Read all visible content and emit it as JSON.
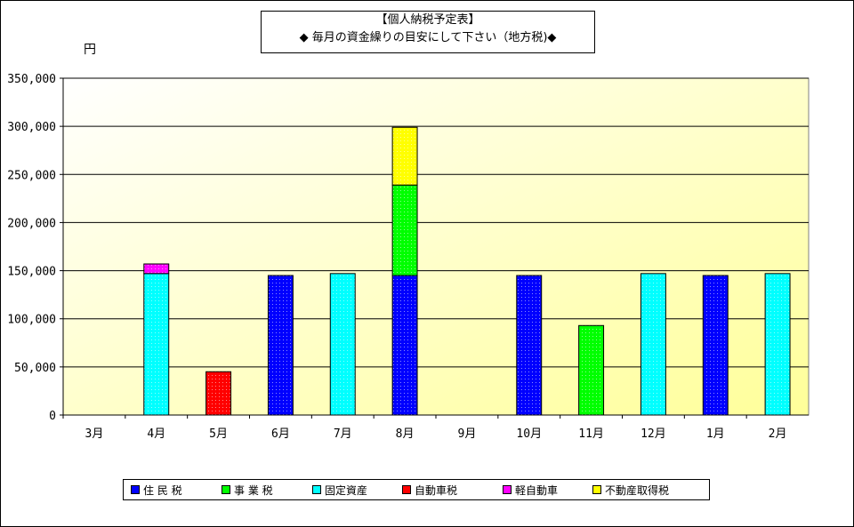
{
  "chart_data": {
    "type": "bar",
    "stacked": true,
    "title_line1": "【個人納税予定表】",
    "title_line2": "◆ 毎月の資金繰りの目安にして下さい（地方税)◆",
    "unit_label": "円",
    "categories": [
      "3月",
      "4月",
      "5月",
      "6月",
      "7月",
      "8月",
      "9月",
      "10月",
      "11月",
      "12月",
      "1月",
      "2月"
    ],
    "ylim": [
      0,
      350000
    ],
    "yticks": [
      0,
      50000,
      100000,
      150000,
      200000,
      250000,
      300000,
      350000
    ],
    "ytick_labels": [
      "0",
      "50,000",
      "100,000",
      "150,000",
      "200,000",
      "250,000",
      "300,000",
      "350,000"
    ],
    "grid": true,
    "legend_position": "bottom",
    "series": [
      {
        "name": "住 民 税",
        "color": "#0000ff",
        "values": [
          0,
          0,
          0,
          145000,
          0,
          145000,
          0,
          145000,
          0,
          0,
          145000,
          0
        ]
      },
      {
        "name": "事 業 税",
        "color": "#00ff00",
        "values": [
          0,
          0,
          0,
          0,
          0,
          94000,
          0,
          0,
          93000,
          0,
          0,
          0
        ]
      },
      {
        "name": "固定資産",
        "color": "#00ffff",
        "values": [
          0,
          147000,
          0,
          0,
          147000,
          0,
          0,
          0,
          0,
          147000,
          0,
          147000
        ]
      },
      {
        "name": "自動車税",
        "color": "#ff0000",
        "values": [
          0,
          0,
          45000,
          0,
          0,
          0,
          0,
          0,
          0,
          0,
          0,
          0
        ]
      },
      {
        "name": "軽自動車",
        "color": "#ff00ff",
        "values": [
          0,
          10000,
          0,
          0,
          0,
          0,
          0,
          0,
          0,
          0,
          0,
          0
        ]
      },
      {
        "name": "不動産取得税",
        "color": "#ffff00",
        "values": [
          0,
          0,
          0,
          0,
          0,
          60000,
          0,
          0,
          0,
          0,
          0,
          0
        ]
      }
    ]
  }
}
